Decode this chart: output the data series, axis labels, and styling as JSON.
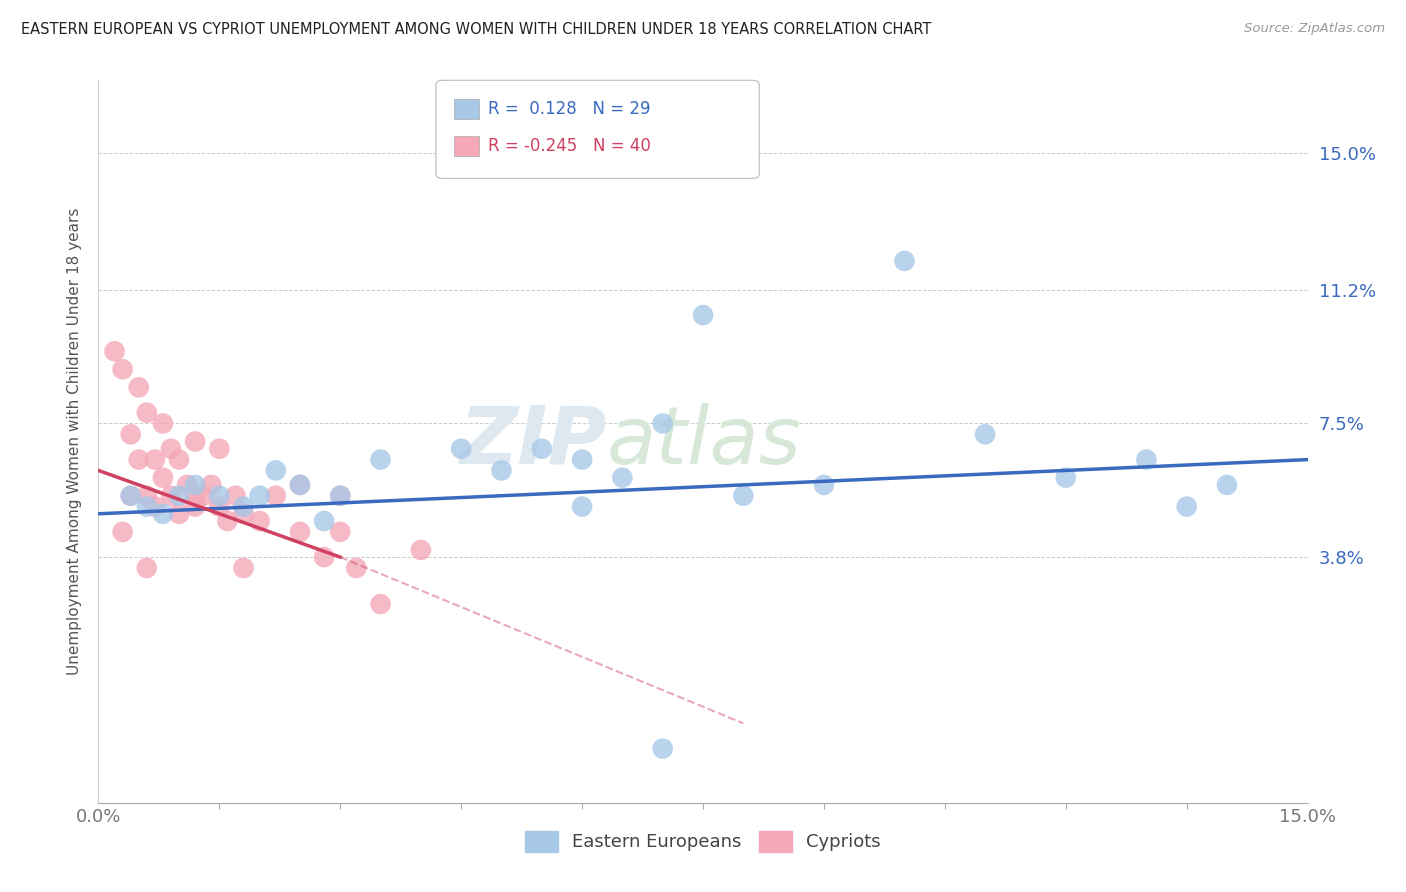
{
  "title": "EASTERN EUROPEAN VS CYPRIOT UNEMPLOYMENT AMONG WOMEN WITH CHILDREN UNDER 18 YEARS CORRELATION CHART",
  "source": "Source: ZipAtlas.com",
  "ylabel": "Unemployment Among Women with Children Under 18 years",
  "xlim": [
    0.0,
    15.0
  ],
  "ylim": [
    -3.0,
    17.0
  ],
  "yticks": [
    3.8,
    7.5,
    11.2,
    15.0
  ],
  "ytick_labels": [
    "3.8%",
    "7.5%",
    "11.2%",
    "15.0%"
  ],
  "xticks": [
    0.0,
    15.0
  ],
  "xtick_labels": [
    "0.0%",
    "15.0%"
  ],
  "x_minor_ticks": [
    1.5,
    3.0,
    4.5,
    6.0,
    7.5,
    9.0,
    10.5,
    12.0,
    13.5
  ],
  "background_color": "#ffffff",
  "grid_color": "#cccccc",
  "blue_color": "#a8c8e8",
  "pink_color": "#f4a8b8",
  "blue_line_color": "#3a6abf",
  "pink_line_color": "#d04060",
  "legend_R1": "R =  0.128",
  "legend_N1": "N = 29",
  "legend_R2": "R = -0.245",
  "legend_N2": "N = 40",
  "legend_label1": "Eastern Europeans",
  "legend_label2": "Cypriots",
  "watermark_zip": "ZIP",
  "watermark_atlas": "atlas",
  "tick_color": "#3a6abf",
  "eastern_europeans_x": [
    0.4,
    0.6,
    0.8,
    1.0,
    1.2,
    1.5,
    1.8,
    2.0,
    2.2,
    2.5,
    2.8,
    3.0,
    3.5,
    4.5,
    5.0,
    5.5,
    6.0,
    6.0,
    6.5,
    7.0,
    8.0,
    9.0,
    10.0,
    11.0,
    12.0,
    13.0,
    14.0,
    7.5,
    13.5
  ],
  "eastern_europeans_y": [
    5.5,
    5.2,
    5.0,
    5.5,
    5.8,
    5.5,
    5.2,
    5.5,
    6.2,
    5.8,
    4.8,
    5.5,
    6.5,
    6.8,
    6.2,
    6.8,
    6.5,
    5.2,
    6.0,
    7.5,
    5.5,
    5.8,
    12.0,
    7.2,
    6.0,
    6.5,
    5.8,
    10.5,
    5.2
  ],
  "cypriots_x": [
    0.2,
    0.3,
    0.4,
    0.4,
    0.5,
    0.5,
    0.6,
    0.6,
    0.7,
    0.7,
    0.8,
    0.8,
    0.9,
    0.9,
    1.0,
    1.0,
    1.1,
    1.2,
    1.2,
    1.3,
    1.4,
    1.5,
    1.5,
    1.6,
    1.7,
    1.8,
    2.0,
    2.2,
    2.5,
    2.5,
    3.0,
    3.0,
    3.5,
    4.0,
    2.8,
    3.2,
    0.3,
    0.6,
    1.8,
    1.2
  ],
  "cypriots_y": [
    9.5,
    9.0,
    5.5,
    7.2,
    6.5,
    8.5,
    5.5,
    7.8,
    5.2,
    6.5,
    6.0,
    7.5,
    5.5,
    6.8,
    5.0,
    6.5,
    5.8,
    5.2,
    7.0,
    5.5,
    5.8,
    5.2,
    6.8,
    4.8,
    5.5,
    5.0,
    4.8,
    5.5,
    4.5,
    5.8,
    4.5,
    5.5,
    2.5,
    4.0,
    3.8,
    3.5,
    4.5,
    3.5,
    3.5,
    5.5
  ],
  "blue_trend_x0": 0.0,
  "blue_trend_y0": 5.0,
  "blue_trend_x1": 15.0,
  "blue_trend_y1": 6.5,
  "pink_solid_x0": 0.0,
  "pink_solid_y0": 6.2,
  "pink_solid_x1": 3.0,
  "pink_solid_y1": 3.8,
  "pink_dash_x0": 3.0,
  "pink_dash_y0": 3.8,
  "pink_dash_x1": 8.0,
  "pink_dash_y1": -0.8,
  "one_blue_below_x": 7.0,
  "one_blue_below_y": -1.5
}
